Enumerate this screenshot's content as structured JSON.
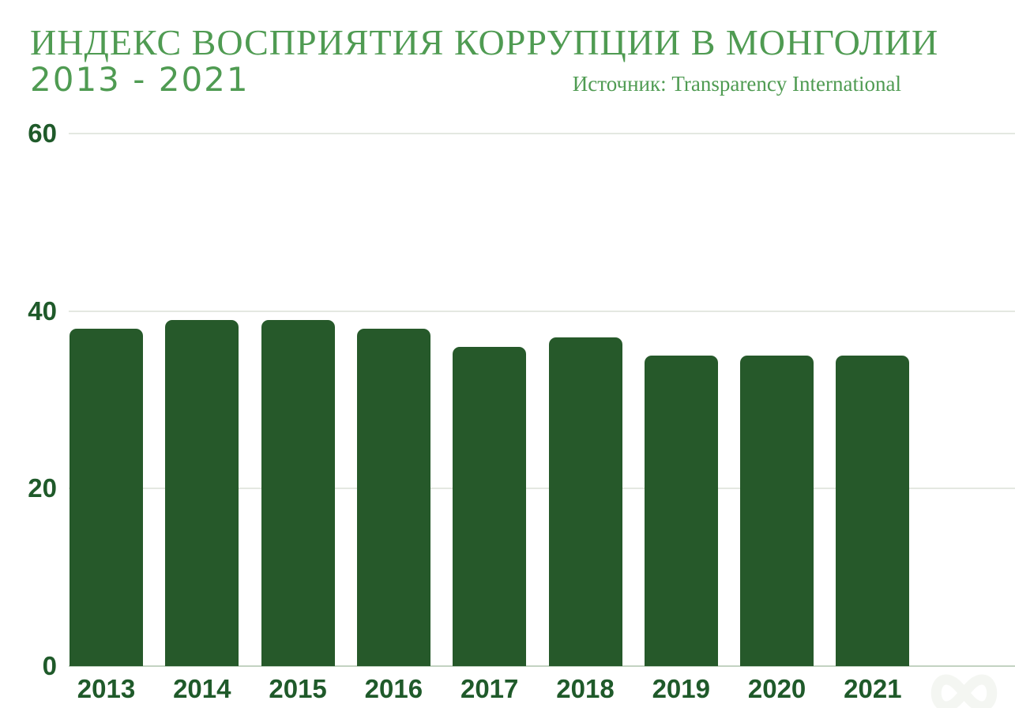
{
  "header": {
    "title_line1": "ИНДЕКС ВОСПРИЯТИЯ КОРРУПЦИИ В МОНГОЛИИ",
    "title_line2": "2013 - 2021",
    "source": "Источник: Transparency International"
  },
  "colors": {
    "title_green": "#4f9b52",
    "bar_green": "#26592a",
    "axis_label_green": "#1f5a2a",
    "gridline": "#e4e8e1",
    "zero_line": "#c3d3c2",
    "background": "#ffffff"
  },
  "watermark": {
    "name": "flourish-watermark"
  },
  "chart_data": {
    "type": "bar",
    "title": "ИНДЕКС ВОСПРИЯТИЯ КОРРУПЦИИ В МОНГОЛИИ 2013 - 2021",
    "source": "Источник: Transparency International",
    "categories": [
      "2013",
      "2014",
      "2015",
      "2016",
      "2017",
      "2018",
      "2019",
      "2020",
      "2021"
    ],
    "values": [
      38,
      39,
      39,
      38,
      36,
      37,
      35,
      35,
      35
    ],
    "xlabel": "",
    "ylabel": "",
    "ylim": [
      0,
      60
    ],
    "yticks": [
      0,
      20,
      40,
      60
    ],
    "grid": true,
    "legend": false,
    "bar_color": "#26592a"
  }
}
